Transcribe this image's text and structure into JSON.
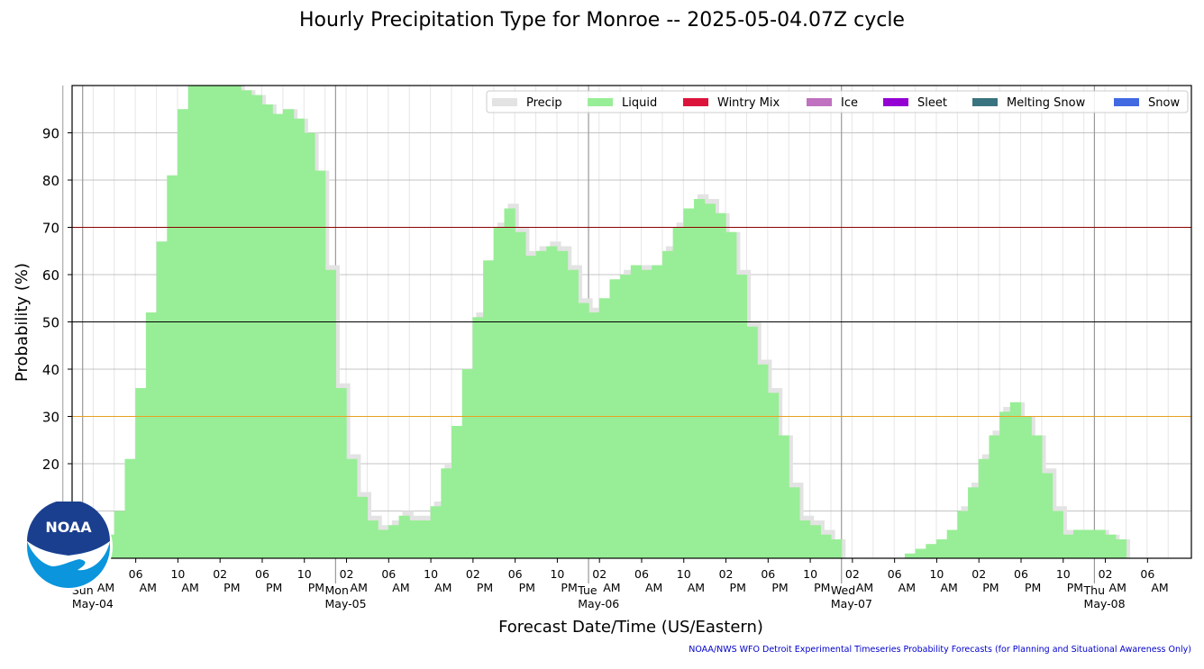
{
  "chart_data": {
    "type": "bar",
    "title": "Hourly Precipitation Type for Monroe -- 2025-05-04.07Z cycle",
    "xlabel": "Forecast Date/Time (US/Eastern)",
    "ylabel": "Probability (%)",
    "ylim": [
      0,
      100
    ],
    "yticks": [
      20,
      30,
      40,
      50,
      60,
      70,
      80,
      90
    ],
    "grid": true,
    "legend_position": "top-right",
    "x_start": "2025-05-04 03:00",
    "x_step_hours": 1,
    "threshold_lines": [
      {
        "value": 70,
        "color": "#8b0000"
      },
      {
        "value": 50,
        "color": "#000000"
      },
      {
        "value": 30,
        "color": "#e8a020"
      }
    ],
    "xtick_labels": [
      {
        "hour": "02",
        "ampm": "AM",
        "day": "Sun",
        "date": "May-04"
      },
      {
        "hour": "06",
        "ampm": "AM"
      },
      {
        "hour": "10",
        "ampm": "AM"
      },
      {
        "hour": "02",
        "ampm": "PM"
      },
      {
        "hour": "06",
        "ampm": "PM"
      },
      {
        "hour": "10",
        "ampm": "PM"
      },
      {
        "hour": "02",
        "ampm": "AM",
        "day": "Mon",
        "date": "May-05"
      },
      {
        "hour": "06",
        "ampm": "AM"
      },
      {
        "hour": "10",
        "ampm": "AM"
      },
      {
        "hour": "02",
        "ampm": "PM"
      },
      {
        "hour": "06",
        "ampm": "PM"
      },
      {
        "hour": "10",
        "ampm": "PM"
      },
      {
        "hour": "02",
        "ampm": "AM",
        "day": "Tue",
        "date": "May-06"
      },
      {
        "hour": "06",
        "ampm": "AM"
      },
      {
        "hour": "10",
        "ampm": "AM"
      },
      {
        "hour": "02",
        "ampm": "PM"
      },
      {
        "hour": "06",
        "ampm": "PM"
      },
      {
        "hour": "10",
        "ampm": "PM"
      },
      {
        "hour": "02",
        "ampm": "AM",
        "day": "Wed",
        "date": "May-07"
      },
      {
        "hour": "06",
        "ampm": "AM"
      },
      {
        "hour": "10",
        "ampm": "AM"
      },
      {
        "hour": "02",
        "ampm": "PM"
      },
      {
        "hour": "06",
        "ampm": "PM"
      },
      {
        "hour": "10",
        "ampm": "PM"
      },
      {
        "hour": "02",
        "ampm": "AM",
        "day": "Thu",
        "date": "May-08"
      },
      {
        "hour": "06",
        "ampm": "AM"
      }
    ],
    "series": [
      {
        "name": "Precip",
        "color": "#e3e3e3",
        "values": [
          0,
          0,
          2,
          5,
          10,
          21,
          36,
          52,
          67,
          81,
          95,
          100,
          100,
          100,
          100,
          100,
          99,
          98,
          96,
          94,
          95,
          93,
          90,
          82,
          62,
          37,
          22,
          14,
          9,
          7,
          8,
          10,
          9,
          9,
          12,
          20,
          28,
          40,
          52,
          63,
          71,
          75,
          70,
          65,
          66,
          67,
          66,
          62,
          55,
          53,
          55,
          59,
          61,
          62,
          62,
          62,
          66,
          71,
          74,
          77,
          76,
          73,
          69,
          61,
          50,
          42,
          36,
          26,
          16,
          9,
          8,
          6,
          4,
          0,
          0,
          0,
          0,
          0,
          0,
          1,
          2,
          3,
          4,
          6,
          11,
          16,
          22,
          27,
          32,
          33,
          30,
          26,
          19,
          11,
          6,
          6,
          6,
          6,
          5,
          4,
          0,
          0,
          0,
          0,
          0,
          0,
          0
        ]
      },
      {
        "name": "Liquid",
        "color": "#98ee96",
        "values": [
          0,
          0,
          2,
          5,
          10,
          21,
          36,
          52,
          67,
          81,
          95,
          100,
          100,
          100,
          100,
          100,
          99,
          98,
          96,
          94,
          95,
          93,
          90,
          82,
          61,
          36,
          21,
          13,
          8,
          6,
          7,
          9,
          8,
          8,
          11,
          19,
          28,
          40,
          51,
          63,
          70,
          74,
          69,
          64,
          65,
          66,
          65,
          61,
          54,
          52,
          55,
          59,
          60,
          62,
          61,
          62,
          65,
          70,
          74,
          76,
          75,
          73,
          69,
          60,
          49,
          41,
          35,
          26,
          15,
          8,
          7,
          5,
          4,
          0,
          0,
          0,
          0,
          0,
          0,
          1,
          2,
          3,
          4,
          6,
          10,
          15,
          21,
          26,
          31,
          33,
          30,
          26,
          18,
          10,
          5,
          6,
          6,
          6,
          5,
          4,
          0,
          0,
          0,
          0,
          0,
          0,
          0
        ]
      },
      {
        "name": "Wintry Mix",
        "color": "#dc143c",
        "values": []
      },
      {
        "name": "Ice",
        "color": "#c071c0",
        "values": []
      },
      {
        "name": "Sleet",
        "color": "#9400d3",
        "values": []
      },
      {
        "name": "Melting Snow",
        "color": "#3a7380",
        "values": []
      },
      {
        "name": "Snow",
        "color": "#4169e1",
        "values": []
      }
    ]
  },
  "footer": {
    "note": "NOAA/NWS WFO Detroit Experimental Timeseries Probability Forecasts (for Planning and Situational Awareness Only)"
  },
  "logo": {
    "text": "NOAA"
  }
}
